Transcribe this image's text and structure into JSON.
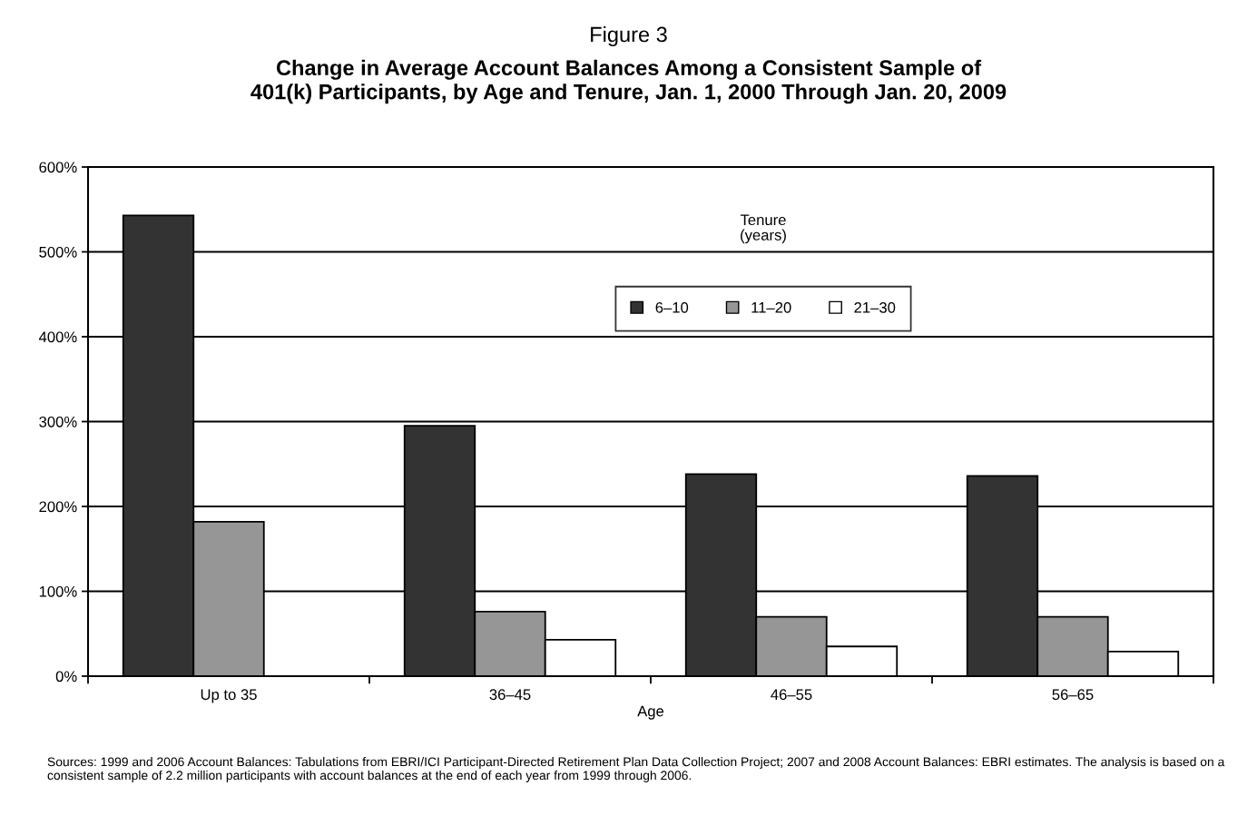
{
  "chart_data": {
    "type": "bar",
    "title": "Figure 3",
    "subtitle": "Change in Average Account Balances Among a Consistent Sample of\n401(k) Participants, by Age and Tenure, Jan. 1, 2000 Through Jan. 20, 2009",
    "xlabel": "Age",
    "legend_title": "Tenure\n(years)",
    "categories": [
      "Up to 35",
      "36–45",
      "46–55",
      "56–65"
    ],
    "series": [
      {
        "name": "6–10",
        "color": "#333333",
        "values": [
          543,
          295,
          238,
          236
        ]
      },
      {
        "name": "11–20",
        "color": "#969696",
        "values": [
          182,
          76,
          70,
          70
        ]
      },
      {
        "name": "21–30",
        "color": "#ffffff",
        "values": [
          null,
          43,
          35,
          29
        ]
      }
    ],
    "ylim": [
      0,
      600
    ],
    "yticks": [
      {
        "value": 0,
        "label": "0%"
      },
      {
        "value": 100,
        "label": "100%"
      },
      {
        "value": 200,
        "label": "200%"
      },
      {
        "value": 300,
        "label": "300%"
      },
      {
        "value": 400,
        "label": "400%"
      },
      {
        "value": 500,
        "label": "500%"
      },
      {
        "value": 600,
        "label": "600%"
      }
    ],
    "grid": "y",
    "legend": "top",
    "annotations": [
      "Sources: 1999 and 2006 Account Balances: Tabulations from EBRI/ICI Participant-Directed Retirement Plan Data Collection Project; 2007 and 2008 Account Balances: EBRI estimates. The analysis is based on a consistent sample of 2.2 million participants with account balances at the end of each year from 1999 through 2006."
    ]
  }
}
